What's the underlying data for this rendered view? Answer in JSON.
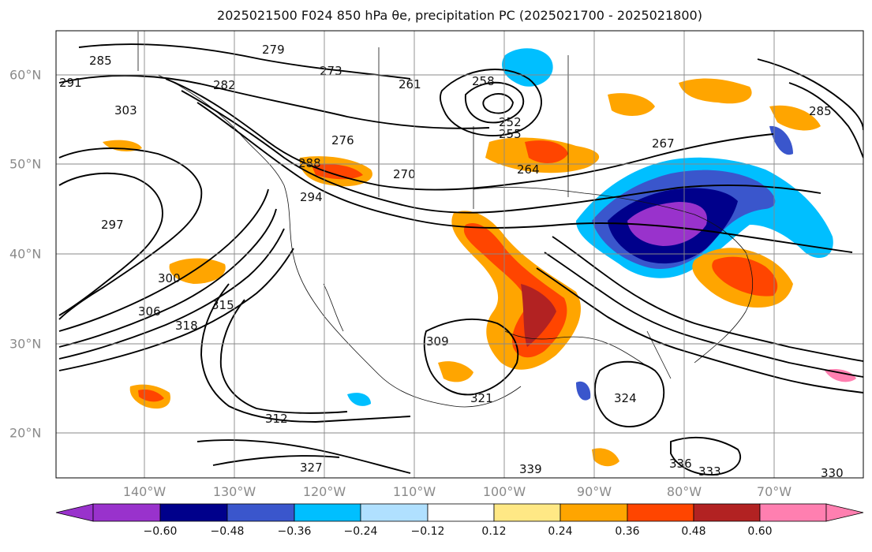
{
  "title": {
    "text": "2025021500 F024 850 hPa θe, precipitation PC (2025021700 - 2025021800)"
  },
  "axes": {
    "lon_ticks": [
      "140°W",
      "130°W",
      "120°W",
      "110°W",
      "100°W",
      "90°W",
      "80°W",
      "70°W"
    ],
    "lat_ticks": [
      "60°N",
      "50°N",
      "40°N",
      "30°N",
      "20°N"
    ]
  },
  "colorbar": {
    "ticks": [
      "−0.60",
      "−0.48",
      "−0.36",
      "−0.24",
      "−0.12",
      "0.12",
      "0.24",
      "0.36",
      "0.48",
      "0.60"
    ],
    "colors": [
      "#9932cc",
      "#00008b",
      "#3a56cc",
      "#00bfff",
      "#b0e0ff",
      "#ffffff",
      "#ffe885",
      "#ffa500",
      "#ff4500",
      "#b22222",
      "#ff7fb0"
    ]
  },
  "contour_labels": [
    "285",
    "279",
    "273",
    "291",
    "261",
    "258",
    "252",
    "255",
    "267",
    "264",
    "270",
    "276",
    "282",
    "288",
    "294",
    "285",
    "303",
    "297",
    "300",
    "306",
    "315",
    "318",
    "309",
    "312",
    "321",
    "324",
    "327",
    "330",
    "333",
    "336",
    "339"
  ],
  "shading_colors": {
    "neg_strong": "#9932cc",
    "neg_dark": "#00008b",
    "neg_mid": "#3a56cc",
    "neg_light": "#00bfff",
    "pos_light": "#ffe885",
    "pos_mid": "#ffa500",
    "pos_strong": "#ff4500",
    "pos_dark": "#b22222"
  }
}
